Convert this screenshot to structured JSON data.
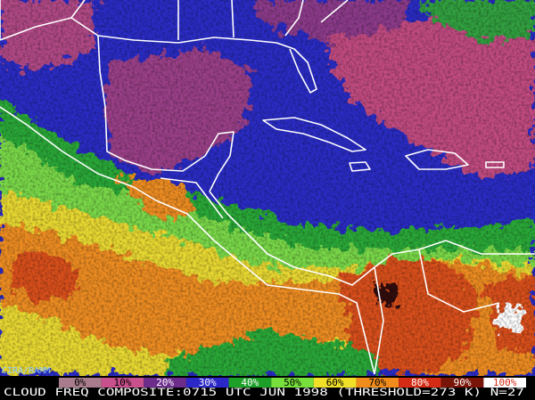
{
  "map": {
    "credit": "CIRA/RAMM",
    "legend": [
      {
        "label": "0%",
        "color": "#a87c8c"
      },
      {
        "label": "10%",
        "color": "#c8508c"
      },
      {
        "label": "20%",
        "color": "#6c2c8c"
      },
      {
        "label": "30%",
        "color": "#2c28c8"
      },
      {
        "label": "40%",
        "color": "#1ca028"
      },
      {
        "label": "50%",
        "color": "#78e03c"
      },
      {
        "label": "60%",
        "color": "#f0e028"
      },
      {
        "label": "70%",
        "color": "#f08c1c"
      },
      {
        "label": "80%",
        "color": "#d42c14"
      },
      {
        "label": "90%",
        "color": "#781408"
      },
      {
        "label": "100%",
        "color": "#ffffff"
      }
    ],
    "caption": "CLOUD FREQ COMPOSITE:0715 UTC JUN 1998 (THRESHOLD=273 K) N=27"
  }
}
